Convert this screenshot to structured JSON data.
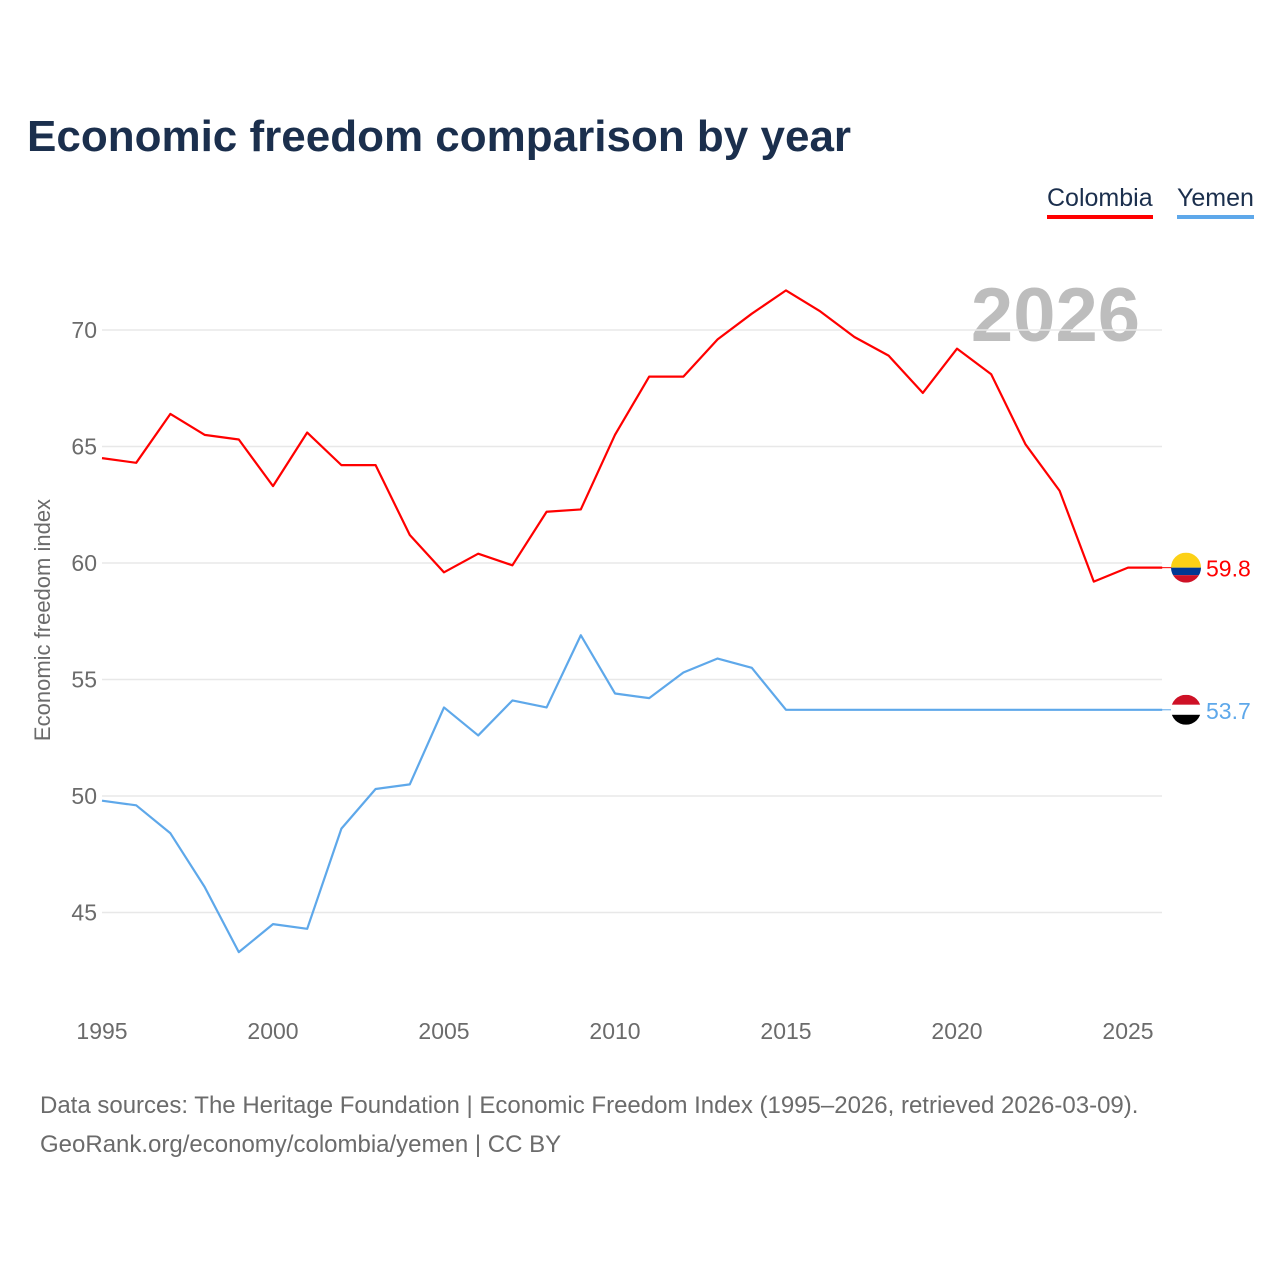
{
  "chart_data": {
    "type": "line",
    "title": "Economic freedom comparison by year",
    "ylabel": "Economic freedom index",
    "xlabel": "",
    "year_watermark": "2026",
    "xlim": [
      1995,
      2026
    ],
    "ylim": [
      41.5,
      72
    ],
    "yticks": [
      45,
      50,
      55,
      60,
      65,
      70
    ],
    "xticks": [
      1995,
      2000,
      2005,
      2010,
      2015,
      2020,
      2025
    ],
    "grid": true,
    "legend_position": "top-right",
    "x": [
      1995,
      1996,
      1997,
      1998,
      1999,
      2000,
      2001,
      2002,
      2003,
      2004,
      2005,
      2006,
      2007,
      2008,
      2009,
      2010,
      2011,
      2012,
      2013,
      2014,
      2015,
      2016,
      2017,
      2018,
      2019,
      2020,
      2021,
      2022,
      2023,
      2024,
      2025,
      2026
    ],
    "series": [
      {
        "name": "Colombia",
        "color": "#ff0000",
        "end_label": "59.8",
        "values": [
          64.5,
          64.3,
          66.4,
          65.5,
          65.3,
          63.3,
          65.6,
          64.2,
          64.2,
          61.2,
          59.6,
          60.4,
          59.9,
          62.2,
          62.3,
          65.5,
          68.0,
          68.0,
          69.6,
          70.7,
          71.7,
          70.8,
          69.7,
          68.9,
          67.3,
          69.2,
          68.1,
          65.1,
          63.1,
          59.2,
          59.8,
          59.8
        ]
      },
      {
        "name": "Yemen",
        "color": "#5ea8ea",
        "end_label": "53.7",
        "values": [
          49.8,
          49.6,
          48.4,
          46.1,
          43.3,
          44.5,
          44.3,
          48.6,
          50.3,
          50.5,
          53.8,
          52.6,
          54.1,
          53.8,
          56.9,
          54.4,
          54.2,
          55.3,
          55.9,
          55.5,
          53.7,
          53.7,
          53.7,
          53.7,
          53.7,
          53.7,
          53.7,
          53.7,
          53.7,
          53.7,
          53.7,
          53.7
        ]
      }
    ]
  },
  "footer": {
    "line1": "Data sources: The Heritage Foundation | Economic Freedom Index (1995–2026, retrieved 2026-03-09).",
    "line2": "GeoRank.org/economy/colombia/yemen | CC BY"
  }
}
